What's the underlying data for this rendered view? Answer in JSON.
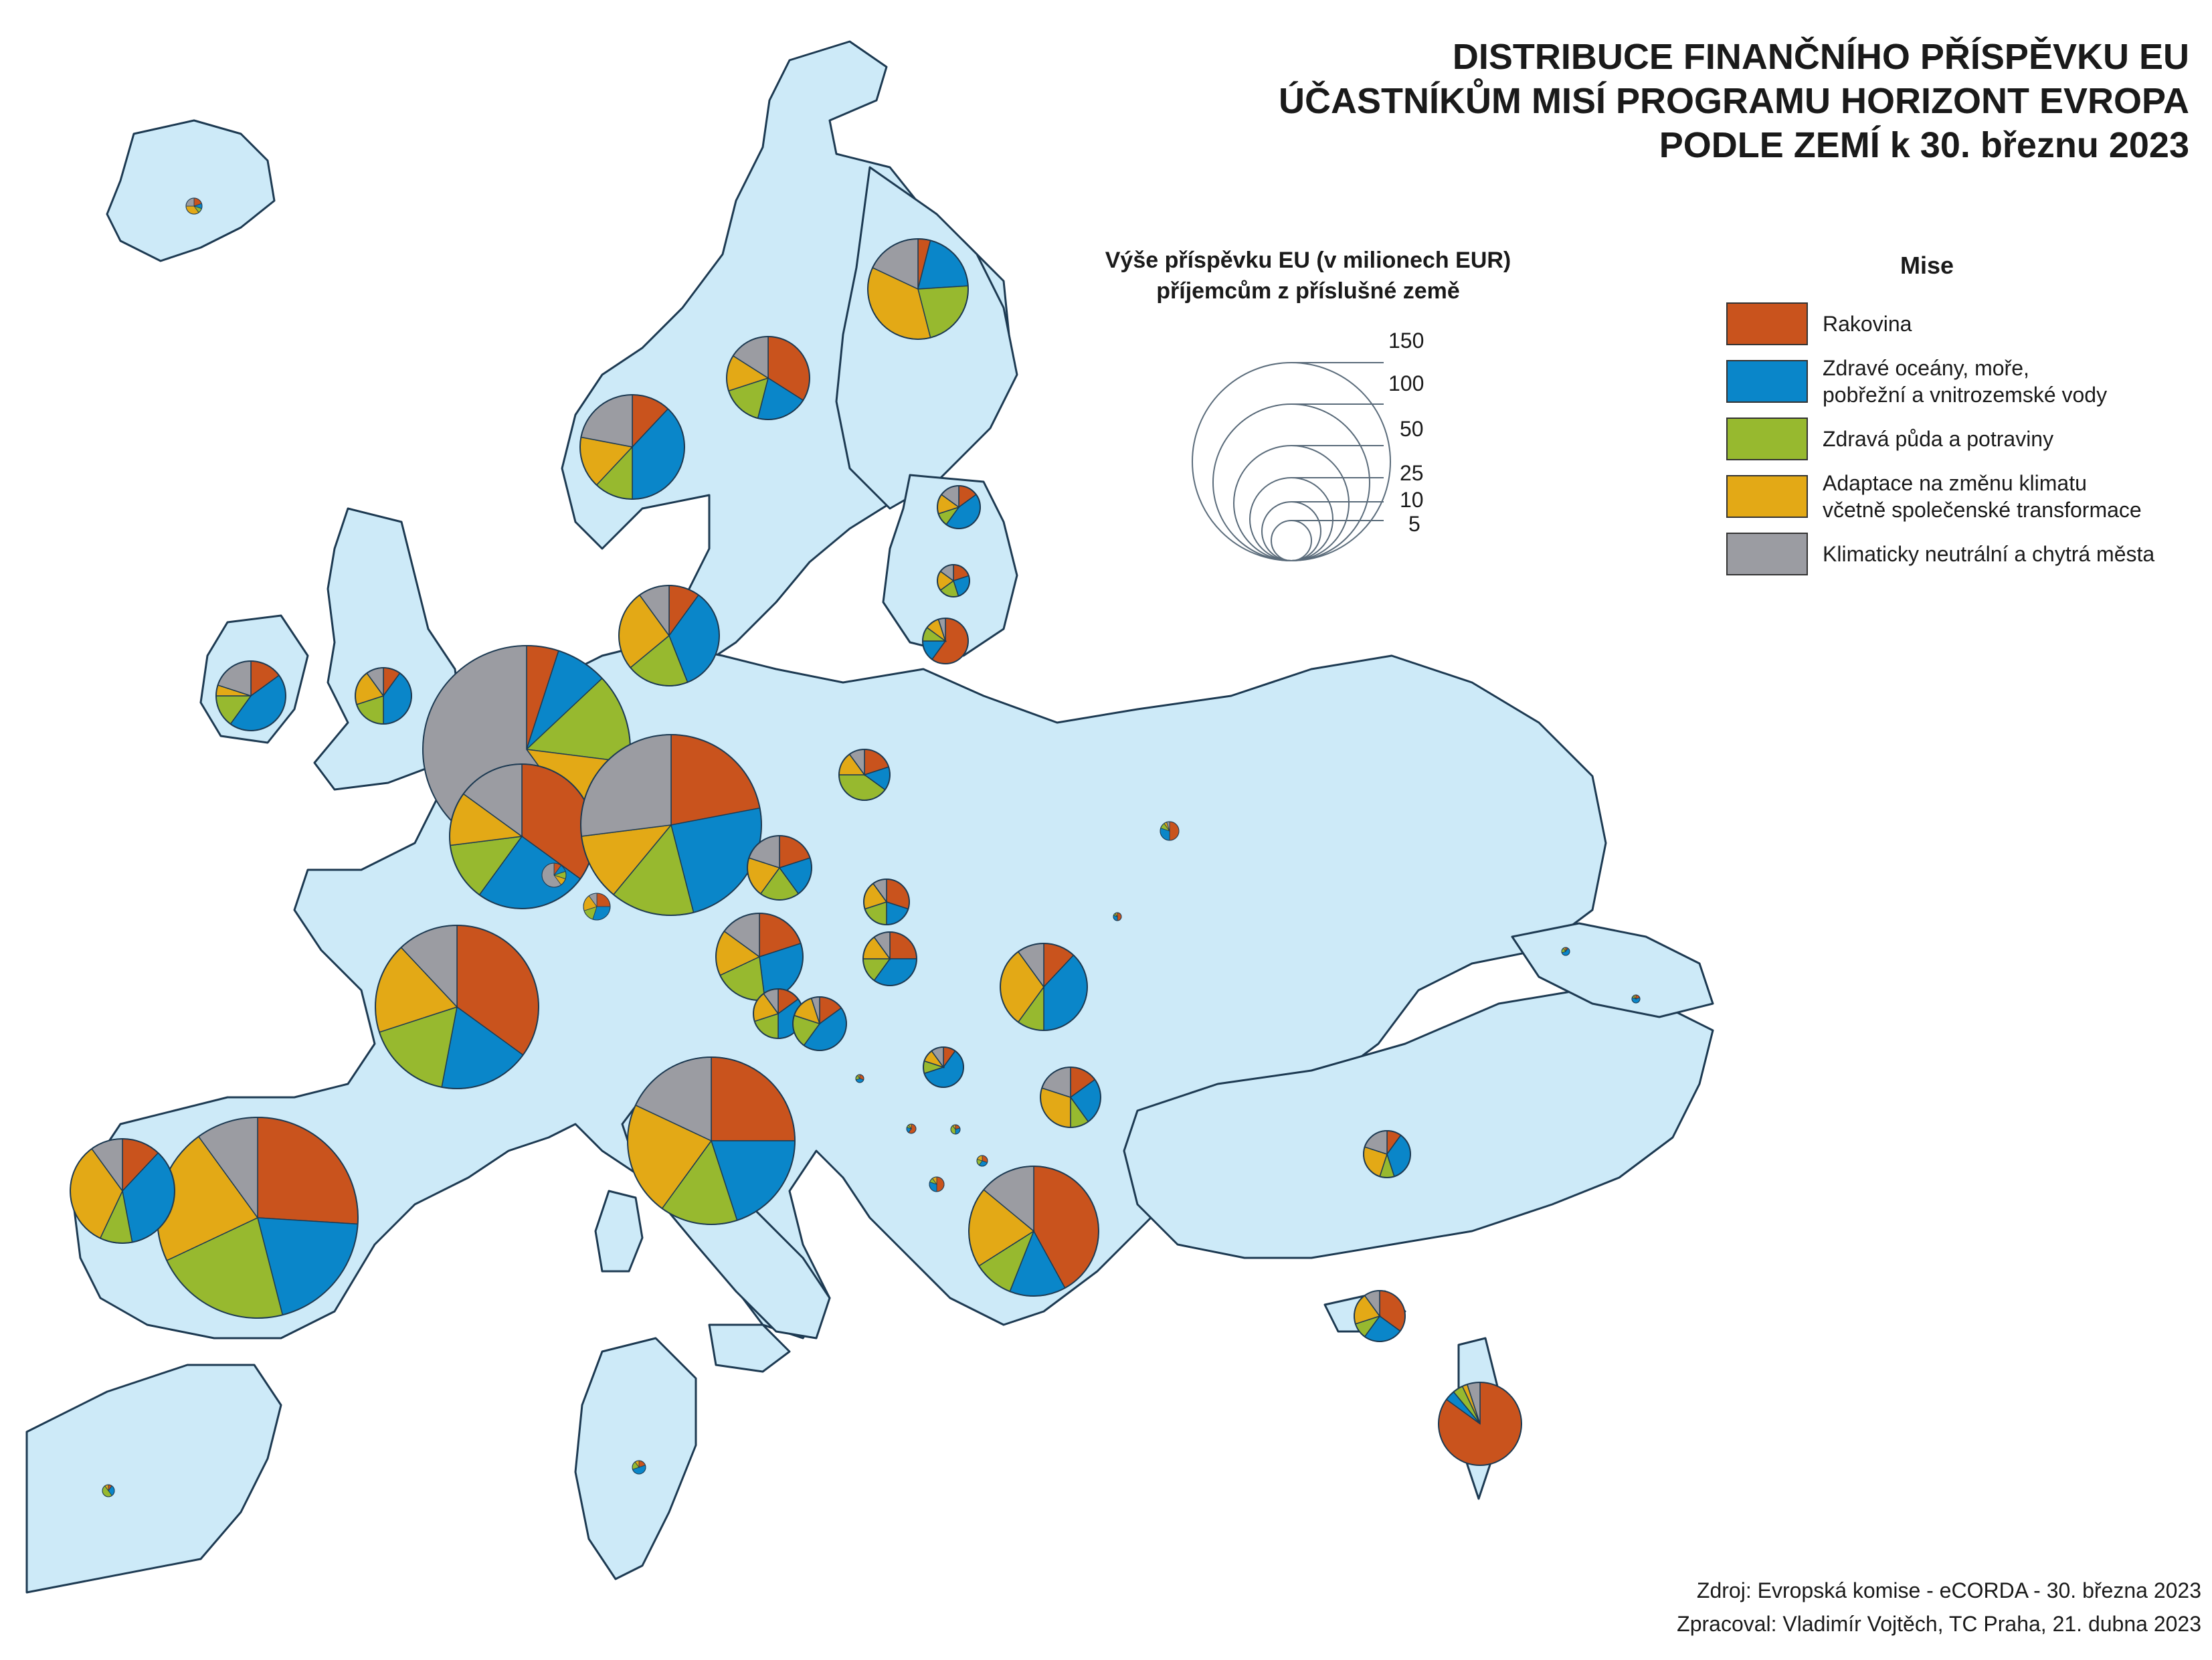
{
  "title_lines": [
    "DISTRIBUCE FINANČNÍHO PŘÍSPĚVKU EU",
    "ÚČASTNÍKŮM MISÍ PROGRAMU HORIZONT EVROPA",
    "PODLE ZEMÍ k 30. březnu 2023"
  ],
  "size_legend": {
    "title_line1": "Výše příspěvku EU (v milionech EUR)",
    "title_line2": "příjemcům z příslušné země",
    "values": [
      "150",
      "100",
      "50",
      "25",
      "10",
      "5"
    ]
  },
  "mission_legend": {
    "title": "Mise",
    "items": [
      {
        "label": "Rakovina",
        "color": "#c9531d"
      },
      {
        "label": "Zdravé oceány, moře,\npobřežní a vnitrozemské vody",
        "color": "#0a86c9"
      },
      {
        "label": "Zdravá půda a potraviny",
        "color": "#97b92f"
      },
      {
        "label": "Adaptace na změnu klimatu\nvčetně společenské transformace",
        "color": "#e3a916"
      },
      {
        "label": "Klimaticky neutrální a chytrá města",
        "color": "#9b9ca2"
      }
    ]
  },
  "source": {
    "line1": "Zdroj: Evropská komise - eCORDA - 30. března 2023",
    "line2": "Zpracoval: Vladimír Vojtěch, TC Praha, 21. dubna 2023"
  },
  "pies": [
    {
      "id": "iceland",
      "slices": [
        0.2,
        0.1,
        0.1,
        0.35,
        0.25
      ]
    },
    {
      "id": "norway",
      "slices": [
        0.12,
        0.38,
        0.12,
        0.16,
        0.22
      ]
    },
    {
      "id": "sweden",
      "slices": [
        0.34,
        0.2,
        0.16,
        0.14,
        0.16
      ]
    },
    {
      "id": "finland",
      "slices": [
        0.04,
        0.2,
        0.22,
        0.36,
        0.18
      ]
    },
    {
      "id": "estonia",
      "slices": [
        0.15,
        0.45,
        0.1,
        0.15,
        0.15
      ]
    },
    {
      "id": "latvia",
      "slices": [
        0.2,
        0.25,
        0.2,
        0.2,
        0.15
      ]
    },
    {
      "id": "lithuania",
      "slices": [
        0.6,
        0.15,
        0.1,
        0.1,
        0.05
      ]
    },
    {
      "id": "denmark",
      "slices": [
        0.1,
        0.34,
        0.2,
        0.26,
        0.1
      ]
    },
    {
      "id": "ireland",
      "slices": [
        0.15,
        0.45,
        0.15,
        0.05,
        0.2
      ]
    },
    {
      "id": "uk",
      "slices": [
        0.1,
        0.4,
        0.2,
        0.2,
        0.1
      ]
    },
    {
      "id": "netherlands",
      "slices": [
        0.05,
        0.08,
        0.14,
        0.13,
        0.6
      ]
    },
    {
      "id": "belgium",
      "slices": [
        0.35,
        0.25,
        0.13,
        0.12,
        0.15
      ]
    },
    {
      "id": "germany",
      "slices": [
        0.22,
        0.24,
        0.15,
        0.12,
        0.27
      ]
    },
    {
      "id": "luxembourg",
      "slices": [
        0.1,
        0.1,
        0.1,
        0.1,
        0.6
      ]
    },
    {
      "id": "poland",
      "slices": [
        0.2,
        0.15,
        0.4,
        0.15,
        0.1
      ]
    },
    {
      "id": "czechia",
      "slices": [
        0.2,
        0.2,
        0.2,
        0.2,
        0.2
      ]
    },
    {
      "id": "slovakia",
      "slices": [
        0.3,
        0.2,
        0.2,
        0.2,
        0.1
      ]
    },
    {
      "id": "austria",
      "slices": [
        0.2,
        0.28,
        0.2,
        0.17,
        0.15
      ]
    },
    {
      "id": "hungary",
      "slices": [
        0.25,
        0.35,
        0.15,
        0.15,
        0.1
      ]
    },
    {
      "id": "slovenia",
      "slices": [
        0.15,
        0.35,
        0.2,
        0.2,
        0.1
      ]
    },
    {
      "id": "croatia",
      "slices": [
        0.15,
        0.45,
        0.2,
        0.15,
        0.05
      ]
    },
    {
      "id": "france",
      "slices": [
        0.35,
        0.18,
        0.17,
        0.18,
        0.12
      ]
    },
    {
      "id": "switzerland",
      "slices": [
        0.25,
        0.3,
        0.15,
        0.2,
        0.1
      ]
    },
    {
      "id": "spain",
      "slices": [
        0.26,
        0.2,
        0.22,
        0.22,
        0.1
      ]
    },
    {
      "id": "portugal",
      "slices": [
        0.12,
        0.35,
        0.1,
        0.33,
        0.1
      ]
    },
    {
      "id": "italy",
      "slices": [
        0.25,
        0.2,
        0.15,
        0.22,
        0.18
      ]
    },
    {
      "id": "romania",
      "slices": [
        0.12,
        0.38,
        0.1,
        0.3,
        0.1
      ]
    },
    {
      "id": "bulgaria",
      "slices": [
        0.15,
        0.25,
        0.1,
        0.3,
        0.2
      ]
    },
    {
      "id": "serbia",
      "slices": [
        0.1,
        0.6,
        0.1,
        0.1,
        0.1
      ]
    },
    {
      "id": "greece",
      "slices": [
        0.42,
        0.14,
        0.1,
        0.2,
        0.14
      ]
    },
    {
      "id": "turkey",
      "slices": [
        0.1,
        0.35,
        0.1,
        0.25,
        0.2
      ]
    },
    {
      "id": "cyprus",
      "slices": [
        0.35,
        0.25,
        0.1,
        0.2,
        0.1
      ]
    },
    {
      "id": "israel",
      "slices": [
        0.85,
        0.04,
        0.04,
        0.02,
        0.05
      ]
    },
    {
      "id": "ukraine",
      "slices": [
        0.5,
        0.3,
        0.1,
        0.05,
        0.05
      ]
    },
    {
      "id": "tunisia",
      "slices": [
        0.2,
        0.5,
        0.2,
        0.1,
        0.0
      ]
    },
    {
      "id": "morocco",
      "slices": [
        0.1,
        0.3,
        0.5,
        0.1,
        0.0
      ]
    },
    {
      "id": "montenegro",
      "slices": [
        0.6,
        0.2,
        0.1,
        0.1,
        0.0
      ]
    },
    {
      "id": "albania",
      "slices": [
        0.5,
        0.3,
        0.1,
        0.1,
        0.0
      ]
    },
    {
      "id": "kosovo",
      "slices": [
        0.2,
        0.3,
        0.4,
        0.1,
        0.0
      ]
    },
    {
      "id": "north-macedonia",
      "slices": [
        0.3,
        0.3,
        0.2,
        0.2,
        0.0
      ]
    },
    {
      "id": "bosnia",
      "slices": [
        0.3,
        0.4,
        0.2,
        0.1,
        0.0
      ]
    },
    {
      "id": "moldova",
      "slices": [
        0.5,
        0.3,
        0.1,
        0.1,
        0.0
      ]
    },
    {
      "id": "georgia",
      "slices": [
        0.1,
        0.6,
        0.2,
        0.1,
        0.0
      ]
    },
    {
      "id": "armenia",
      "slices": [
        0.2,
        0.6,
        0.1,
        0.1,
        0.0
      ]
    }
  ]
}
